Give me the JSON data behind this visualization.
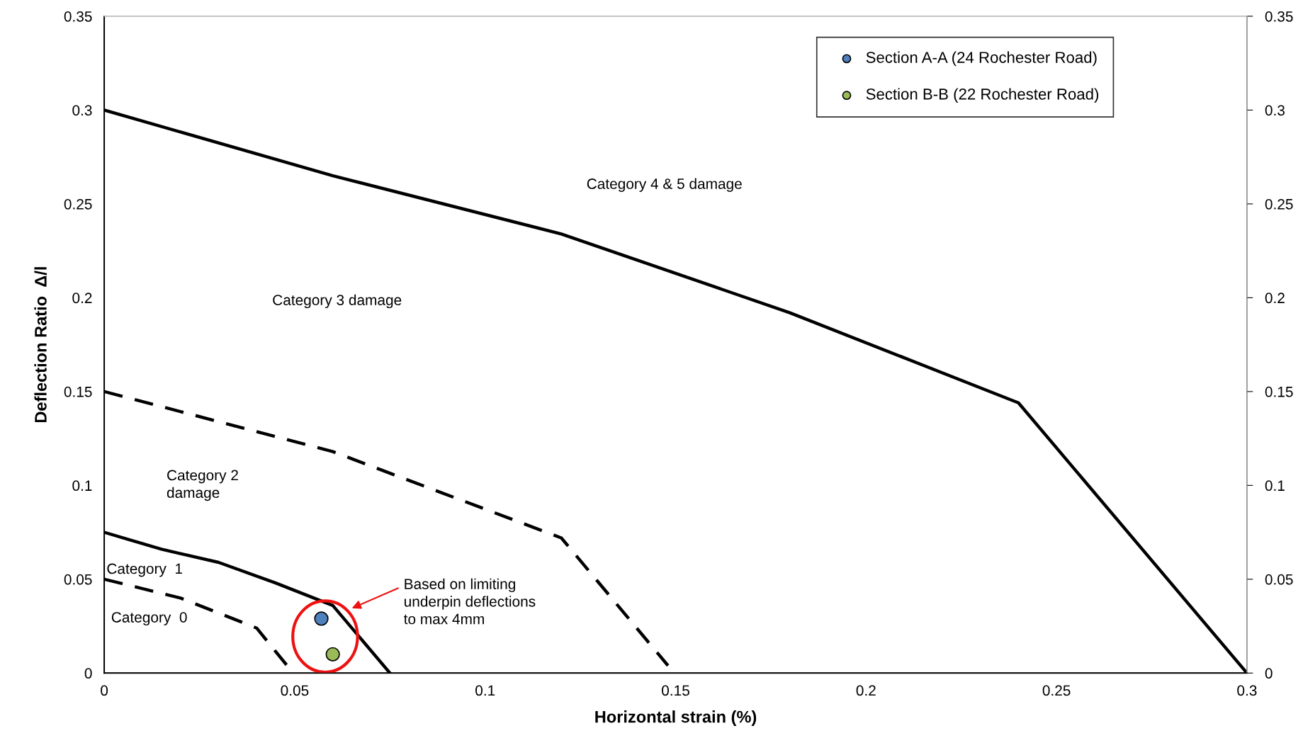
{
  "chart_data": {
    "type": "line",
    "xlabel": "Horizontal strain (%)",
    "ylabel": "Deflection Ratio  Δ/l",
    "xlim": [
      0,
      0.3
    ],
    "xticks": [
      0,
      0.05,
      0.1,
      0.15,
      0.2,
      0.25,
      0.3
    ],
    "ylim": [
      0,
      0.35
    ],
    "yticks": [
      0,
      0.05,
      0.1,
      0.15,
      0.2,
      0.25,
      0.3,
      0.35
    ],
    "y2lim": [
      0,
      0.35
    ],
    "y2ticks": [
      0,
      0.05,
      0.1,
      0.15,
      0.2,
      0.25,
      0.3,
      0.35
    ],
    "grid": false,
    "legend": "top right",
    "series": [
      {
        "color": "#000000",
        "line_style": "solid",
        "marker": "none",
        "x": [
          0,
          0.06,
          0.12,
          0.18,
          0.24,
          0.3
        ],
        "values": [
          0.3,
          0.265,
          0.234,
          0.192,
          0.144,
          0
        ]
      },
      {
        "color": "#000000",
        "line_style": "dashed",
        "marker": "none",
        "x": [
          0,
          0.06,
          0.12,
          0.148
        ],
        "values": [
          0.15,
          0.118,
          0.072,
          0.004
        ]
      },
      {
        "color": "#000000",
        "line_style": "solid",
        "marker": "none",
        "x": [
          0,
          0.015,
          0.03,
          0.045,
          0.06,
          0.075
        ],
        "values": [
          0.075,
          0.066,
          0.059,
          0.048,
          0.036,
          0
        ]
      },
      {
        "color": "#000000",
        "line_style": "dashed",
        "marker": "none",
        "x": [
          0,
          0.02,
          0.04,
          0.048
        ],
        "values": [
          0.05,
          0.04,
          0.024,
          0.004
        ]
      },
      {
        "type": "scatter",
        "name": "Section A-A (24 Rochester Road)",
        "color": "#4f81bd",
        "marker": "circle",
        "x": [
          0.057
        ],
        "values": [
          0.029
        ]
      },
      {
        "type": "scatter",
        "name": "Section B-B (22 Rochester Road)",
        "color": "#9bbb59",
        "marker": "circle",
        "x": [
          0.06
        ],
        "values": [
          0.01
        ]
      }
    ],
    "annotations": [
      "Category 4 & 5 damage",
      "Category 3 damage",
      "Category 2\ndamage",
      "Category  1",
      "Category  0",
      "Based on limiting\nunderpin deflections\nto max 4mm"
    ]
  }
}
